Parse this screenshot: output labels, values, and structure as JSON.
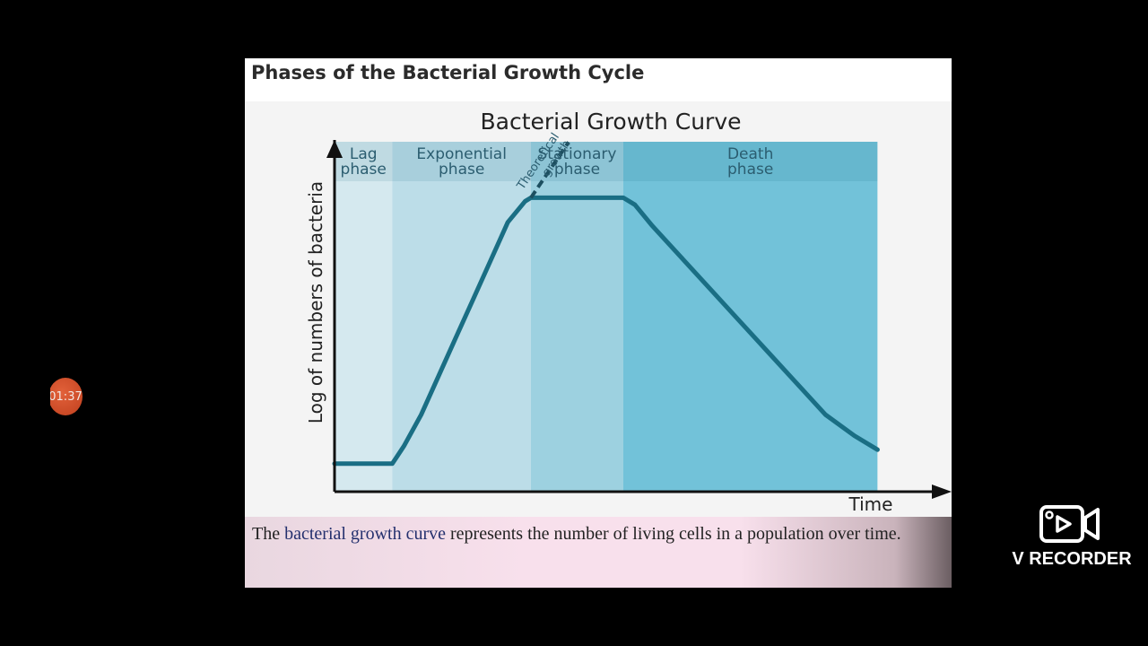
{
  "slide": {
    "title": "Phases of the Bacterial Growth Cycle",
    "caption_prefix": "The ",
    "caption_link": "bacterial growth curve",
    "caption_suffix": " represents the number of living cells in a population over time."
  },
  "chart_data": {
    "type": "line",
    "title": "Bacterial Growth Curve",
    "xlabel": "Time",
    "ylabel": "Log of numbers of bacteria",
    "phases": [
      {
        "line1": "Lag",
        "line2": "phase",
        "x_start": 0,
        "x_end": 10,
        "color": "#d5e9ef"
      },
      {
        "line1": "Exponential",
        "line2": "phase",
        "x_start": 10,
        "x_end": 34,
        "color": "#bcdde8"
      },
      {
        "line1": "Stationary",
        "line2": "phase",
        "x_start": 34,
        "x_end": 50,
        "color": "#9dd1e0"
      },
      {
        "line1": "Death",
        "line2": "phase",
        "x_start": 50,
        "x_end": 94,
        "color": "#72c2d9"
      }
    ],
    "series": [
      {
        "values": [
          [
            0,
            8
          ],
          [
            10,
            8
          ],
          [
            12,
            13
          ],
          [
            15,
            22
          ],
          [
            18,
            33
          ],
          [
            21,
            44
          ],
          [
            24,
            55
          ],
          [
            27,
            66
          ],
          [
            30,
            77
          ],
          [
            33,
            83
          ],
          [
            34,
            84
          ],
          [
            50,
            84
          ],
          [
            52,
            82
          ],
          [
            55,
            76
          ],
          [
            60,
            67
          ],
          [
            65,
            58
          ],
          [
            70,
            49
          ],
          [
            75,
            40
          ],
          [
            80,
            31
          ],
          [
            85,
            22
          ],
          [
            90,
            16
          ],
          [
            94,
            12
          ]
        ]
      }
    ],
    "annotation": {
      "line1": "Theoretical",
      "line2": "growth"
    },
    "xlim": [
      0,
      100
    ],
    "ylim": [
      0,
      100
    ],
    "grid": false,
    "colors": {
      "curve": "#1a6e84",
      "axis": "#111111",
      "header_text": "#2b5d70",
      "header_band": "rgba(0,90,120,0.10)"
    }
  },
  "overlay": {
    "timer": "01:37",
    "recorder_label": "V RECORDER"
  }
}
